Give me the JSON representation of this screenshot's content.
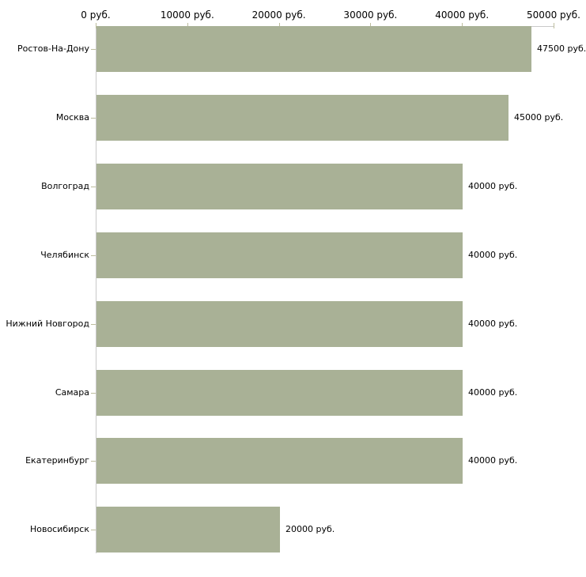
{
  "chart_data": {
    "type": "bar",
    "orientation": "horizontal",
    "title": "",
    "xlabel": "",
    "ylabel": "",
    "unit": "руб.",
    "xlim": [
      0,
      50000
    ],
    "grid": "off",
    "legend": "none",
    "categories": [
      "Ростов-На-Дону",
      "Москва",
      "Волгоград",
      "Челябинск",
      "Нижний Новгород",
      "Самара",
      "Екатеринбург",
      "Новосибирск"
    ],
    "values": [
      47500,
      45000,
      40000,
      40000,
      40000,
      40000,
      40000,
      20000
    ],
    "value_labels": [
      "47500 руб.",
      "45000 руб.",
      "40000 руб.",
      "40000 руб.",
      "40000 руб.",
      "40000 руб.",
      "40000 руб.",
      "20000 руб."
    ],
    "axis_ticks": [
      {
        "value": 0,
        "label": "0 руб."
      },
      {
        "value": 10000,
        "label": "10000 руб."
      },
      {
        "value": 20000,
        "label": "20000 руб."
      },
      {
        "value": 30000,
        "label": "30000 руб."
      },
      {
        "value": 40000,
        "label": "40000 руб."
      },
      {
        "value": 50000,
        "label": "50000 руб."
      }
    ],
    "colors": {
      "bar": "#a9b196",
      "axis_line": "#c9c9c9",
      "tick_mark": "#bdbd9e",
      "text": "#000000",
      "background": "#ffffff"
    }
  }
}
